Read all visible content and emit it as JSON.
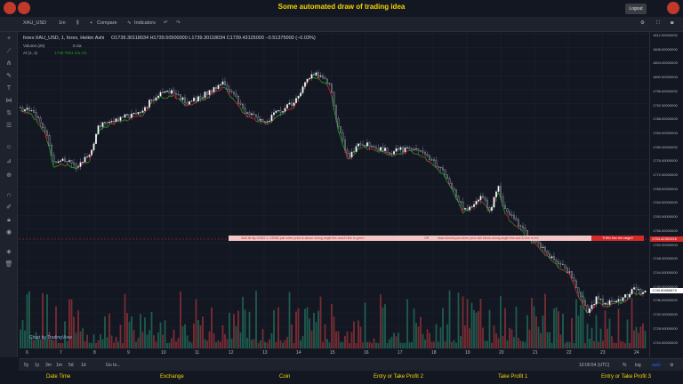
{
  "header": {
    "title": "Some automated draw of trading idea",
    "logout_label": "Logout"
  },
  "toolbar": {
    "symbol": "XAU_USD",
    "interval": "1m",
    "compare": "Compare",
    "indicators": "Indicators"
  },
  "legend": {
    "series": "forex:XAU_USD, 1, forex, Heikin Ashi",
    "ohlc": "O1739.30118034  H1739.50500000  L1739.30118034  C1739.43125000  −0.51375000 (−0.03%)",
    "volume": "Volume (20)",
    "volume_vals": "3   n/a",
    "ai": "AI (1, 1)",
    "ai_vals": "1739.7551   n/a   n/a"
  },
  "annotation": {
    "parts": [
      "Stall till flip ONES  1.   DRAW just when  price is above strong angle line and AI line is green",
      "OR",
      "draw checks just when price still below strong angle line and AI line is red"
    ],
    "cta": "THEN See the magic!!"
  },
  "price_axis": {
    "labels": [
      "1812.00000000",
      "1808.00000000",
      "1804.00000000",
      "1800.00000000",
      "1796.00000000",
      "1792.00000000",
      "1788.00000000",
      "1784.00000000",
      "1780.00000000",
      "1776.00000000",
      "1772.00000000",
      "1768.00000000",
      "1764.00000000",
      "1760.00000000",
      "1756.00000000",
      "1752.00000000",
      "1748.00000000",
      "1744.00000000",
      "1740.00000000",
      "1736.00000000",
      "1732.00000000",
      "1728.00000000",
      "1724.00000000"
    ],
    "current_red": "1754.42391016",
    "current_white": "1739.80856875"
  },
  "time_axis": {
    "labels": [
      "6",
      "7",
      "8",
      "9",
      "10",
      "11",
      "12",
      "13",
      "14",
      "15",
      "16",
      "17",
      "18",
      "19",
      "20",
      "21",
      "22",
      "23",
      "24"
    ]
  },
  "bottom_bar": {
    "ranges": [
      "5y",
      "1y",
      "3m",
      "1m",
      "5d",
      "1d",
      "Go to..."
    ],
    "time": "10:00:54 (UTC)",
    "scale_pct": "%",
    "scale_log": "log",
    "scale_auto": "auto"
  },
  "footer": {
    "items": [
      "Date Time",
      "Exchange",
      "Coin",
      "Entry or Take Profit 2",
      "Take Profit 1",
      "Entry or Take Profit 3"
    ]
  },
  "watermark": "Chart by TradingView",
  "colors": {
    "up": "#26a69a",
    "down": "#ef5350",
    "ai_green": "#1e9b1e",
    "ai_red": "#c62828",
    "title": "#f5d400"
  }
}
